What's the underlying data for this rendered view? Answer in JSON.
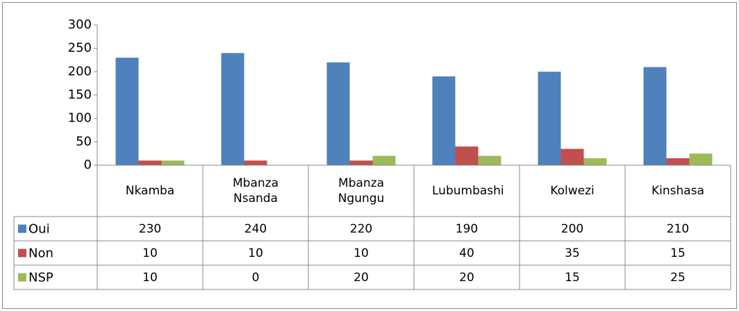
{
  "chart_data": {
    "type": "bar",
    "categories": [
      "Nkamba",
      "Mbanza Nsanda",
      "Mbanza Ngungu",
      "Lubumbashi",
      "Kolwezi",
      "Kinshasa"
    ],
    "series": [
      {
        "name": "Oui",
        "color": "#4f81bd",
        "values": [
          230,
          240,
          220,
          190,
          200,
          210
        ]
      },
      {
        "name": "Non",
        "color": "#c0504d",
        "values": [
          10,
          10,
          10,
          40,
          35,
          15
        ]
      },
      {
        "name": "NSP",
        "color": "#9bbb59",
        "values": [
          10,
          0,
          20,
          20,
          15,
          25
        ]
      }
    ],
    "ylim": [
      0,
      300
    ],
    "yticks": [
      0,
      50,
      100,
      150,
      200,
      250,
      300
    ],
    "grid": false,
    "data_table": true
  }
}
